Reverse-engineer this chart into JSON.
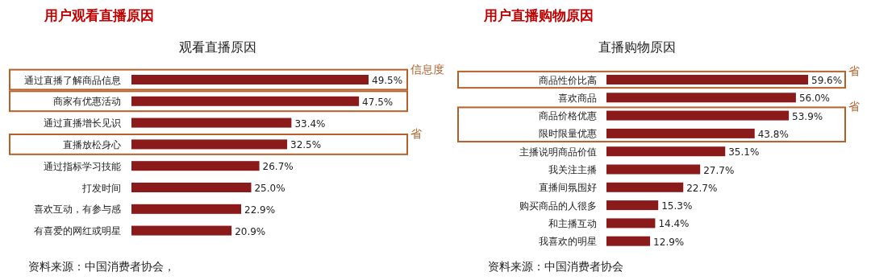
{
  "chart_data": [
    {
      "type": "bar",
      "orientation": "horizontal",
      "title": "用户观看直播原因",
      "subtitle": "观看直播原因",
      "color": "#8b1a1a",
      "categories": [
        "通过直播了解商品信息",
        "商家有优惠活动",
        "通过直播增长见识",
        "直播放松身心",
        "通过指标学习技能",
        "打发时间",
        "喜欢互动，有参与感",
        "有喜爱的网红或明星"
      ],
      "values": [
        49.5,
        47.5,
        33.4,
        32.5,
        26.7,
        25.0,
        22.9,
        20.9
      ],
      "value_labels": [
        "49.5%",
        "47.5%",
        "33.4%",
        "32.5%",
        "26.7%",
        "25.0%",
        "22.9%",
        "20.9%"
      ],
      "annotations": [
        "资料来源：中国消费者协会，",
        "信息度",
        "省"
      ]
    },
    {
      "type": "bar",
      "orientation": "horizontal",
      "title": "用户直播购物原因",
      "subtitle": "直播购物原因",
      "color": "#8b1a1a",
      "categories": [
        "商品性价比高",
        "喜欢商品",
        "商品价格优惠",
        "限时限量优惠",
        "主播说明商品价值",
        "我关注主播",
        "直播间氛围好",
        "购买商品的人很多",
        "和主播互动",
        "我喜欢的明星"
      ],
      "values": [
        59.6,
        56.0,
        53.9,
        43.8,
        35.1,
        27.7,
        22.7,
        15.3,
        14.4,
        12.9
      ],
      "value_labels": [
        "59.6%",
        "56.0%",
        "53.9%",
        "43.8%",
        "35.1%",
        "27.7%",
        "22.7%",
        "15.3%",
        "14.4%",
        "12.9%"
      ],
      "annotations": [
        "资料来源：中国消费者协会",
        "省",
        "省"
      ]
    }
  ]
}
